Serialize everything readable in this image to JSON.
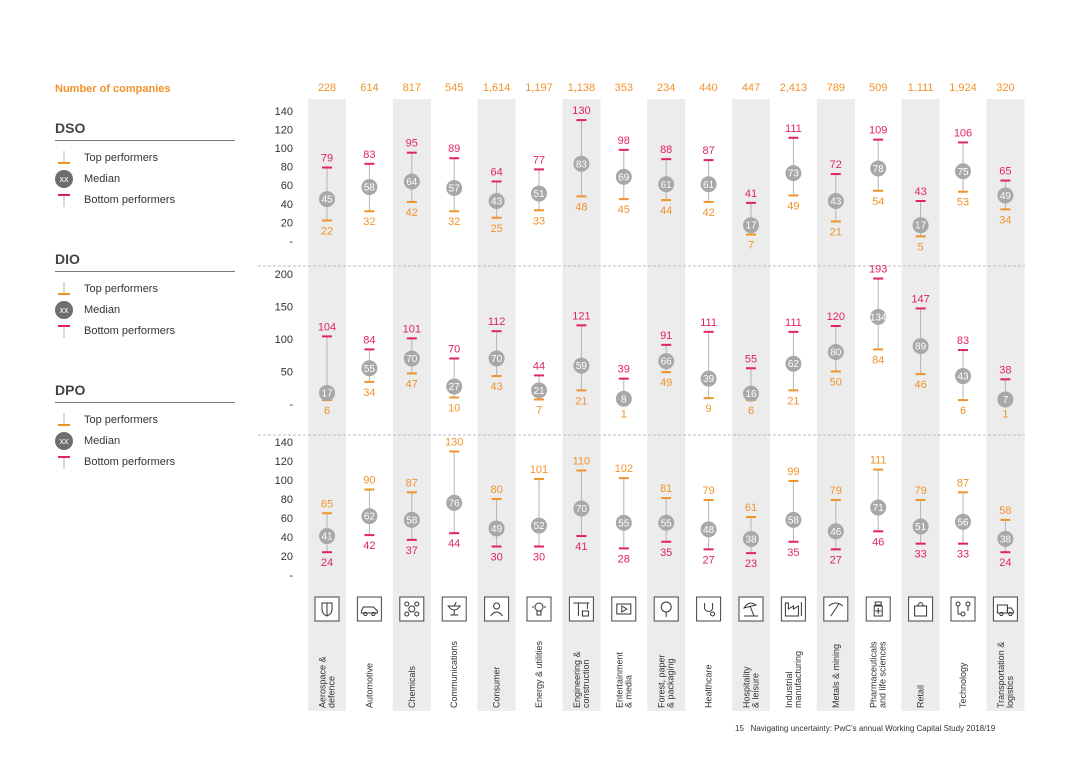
{
  "number_of_companies_label": "Number of companies",
  "legend": {
    "top_performers": "Top performers",
    "median": "Median",
    "bottom_performers": "Bottom performers",
    "median_symbol": "xx"
  },
  "colors": {
    "top": "#f0932b",
    "bottom": "#e0245e",
    "median": "#a8a8a8",
    "stripe": "#ececec",
    "line": "#b4b4b4"
  },
  "footer": {
    "page": "15",
    "text": "Navigating uncertainty: PwC's annual Working Capital Study 2018/19"
  },
  "chart_data": {
    "type": "range",
    "industries": [
      "Aerospace & defence",
      "Automotive",
      "Chemicals",
      "Communications",
      "Consumer",
      "Energy & utilities",
      "Engineering & construction",
      "Entertainment & media",
      "Forest, paper & packaging",
      "Healthcare",
      "Hospitality & leisure",
      "Industrial manufacturing",
      "Metals & mining",
      "Pharmaceuticals and life sciences",
      "Retail",
      "Technology",
      "Transportation & logistics"
    ],
    "industry_lines": [
      [
        "Aerospace &",
        "defence"
      ],
      [
        "Automotive"
      ],
      [
        "Chemicals"
      ],
      [
        "Communications"
      ],
      [
        "Consumer"
      ],
      [
        "Energy & utilities"
      ],
      [
        "Engineering &",
        "construction"
      ],
      [
        "Entertainment",
        "& media"
      ],
      [
        "Forest, paper",
        "& packaging"
      ],
      [
        "Healthcare"
      ],
      [
        "Hospitality",
        "& leisure"
      ],
      [
        "Industrial",
        "manufacturing"
      ],
      [
        "Metals & mining"
      ],
      [
        "Pharmaceuticals",
        "and life sciences"
      ],
      [
        "Retail"
      ],
      [
        "Technology"
      ],
      [
        "Transportation &",
        "logistics"
      ]
    ],
    "icons": [
      "shield-icon",
      "car-icon",
      "molecule-icon",
      "satellite-icon",
      "person-icon",
      "lightbulb-icon",
      "crane-icon",
      "play-screen-icon",
      "tree-icon",
      "stethoscope-icon",
      "beach-umbrella-icon",
      "factory-icon",
      "pickaxe-icon",
      "medicine-bottle-icon",
      "shopping-bag-icon",
      "circuit-icon",
      "truck-icon"
    ],
    "company_counts": [
      "228",
      "614",
      "817",
      "545",
      "1,614",
      "1,197",
      "1,138",
      "353",
      "234",
      "440",
      "447",
      "2,413",
      "789",
      "509",
      "1.111",
      "1,924",
      "320"
    ],
    "panels": [
      {
        "name": "DSO",
        "y_ticks": [
          "140",
          "120",
          "100",
          "80",
          "60",
          "40",
          "20",
          "-"
        ],
        "ylim": [
          0,
          140
        ],
        "top": [
          22,
          32,
          42,
          32,
          25,
          33,
          48,
          45,
          44,
          42,
          7,
          49,
          21,
          54,
          5,
          53,
          34
        ],
        "median": [
          45,
          58,
          64,
          57,
          43,
          51,
          83,
          69,
          61,
          61,
          17,
          73,
          43,
          78,
          17,
          75,
          49
        ],
        "bottom": [
          79,
          83,
          95,
          89,
          64,
          77,
          130,
          98,
          88,
          87,
          41,
          111,
          72,
          109,
          43,
          106,
          65
        ]
      },
      {
        "name": "DIO",
        "y_ticks": [
          "200",
          "150",
          "100",
          "50",
          "-"
        ],
        "ylim": [
          0,
          200
        ],
        "top": [
          6,
          34,
          47,
          10,
          43,
          7,
          21,
          1,
          49,
          9,
          6,
          21,
          50,
          84,
          46,
          6,
          1
        ],
        "median": [
          17,
          55,
          70,
          27,
          70,
          21,
          59,
          8,
          66,
          39,
          16,
          62,
          80,
          134,
          89,
          43,
          7
        ],
        "bottom": [
          104,
          84,
          101,
          70,
          112,
          44,
          121,
          39,
          91,
          111,
          55,
          111,
          120,
          193,
          147,
          83,
          38
        ]
      },
      {
        "name": "DPO",
        "y_ticks": [
          "140",
          "120",
          "100",
          "80",
          "60",
          "40",
          "20",
          "-"
        ],
        "ylim": [
          0,
          140
        ],
        "top": [
          65,
          90,
          87,
          130,
          80,
          101,
          110,
          102,
          81,
          79,
          61,
          99,
          79,
          111,
          79,
          87,
          58
        ],
        "median": [
          41,
          62,
          58,
          76,
          49,
          52,
          70,
          55,
          55,
          48,
          38,
          58,
          46,
          71,
          51,
          56,
          38
        ],
        "bottom": [
          24,
          42,
          37,
          44,
          30,
          30,
          41,
          28,
          35,
          27,
          23,
          35,
          27,
          46,
          33,
          33,
          24
        ]
      }
    ]
  }
}
